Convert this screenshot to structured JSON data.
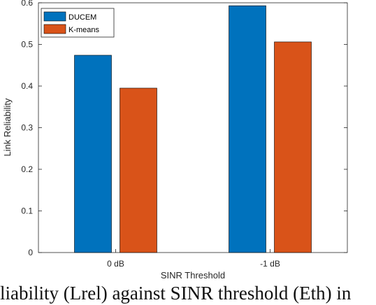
{
  "chart_data": {
    "type": "bar",
    "categories": [
      "0 dB",
      "-1 dB"
    ],
    "series": [
      {
        "name": "DUCEM",
        "values": [
          0.474,
          0.593
        ],
        "color": "#0072BD"
      },
      {
        "name": "K-means",
        "values": [
          0.395,
          0.506
        ],
        "color": "#D95319"
      }
    ],
    "xlabel": "SINR Threshold",
    "ylabel": "Link Reliability",
    "ylim": [
      0,
      0.6
    ],
    "yticks": [
      "0",
      "0.1",
      "0.2",
      "0.3",
      "0.4",
      "0.5",
      "0.6"
    ],
    "legend_position": "top-left",
    "grid": false
  },
  "caption_text": "liability (Lrel) against SINR threshold (Eth) in"
}
